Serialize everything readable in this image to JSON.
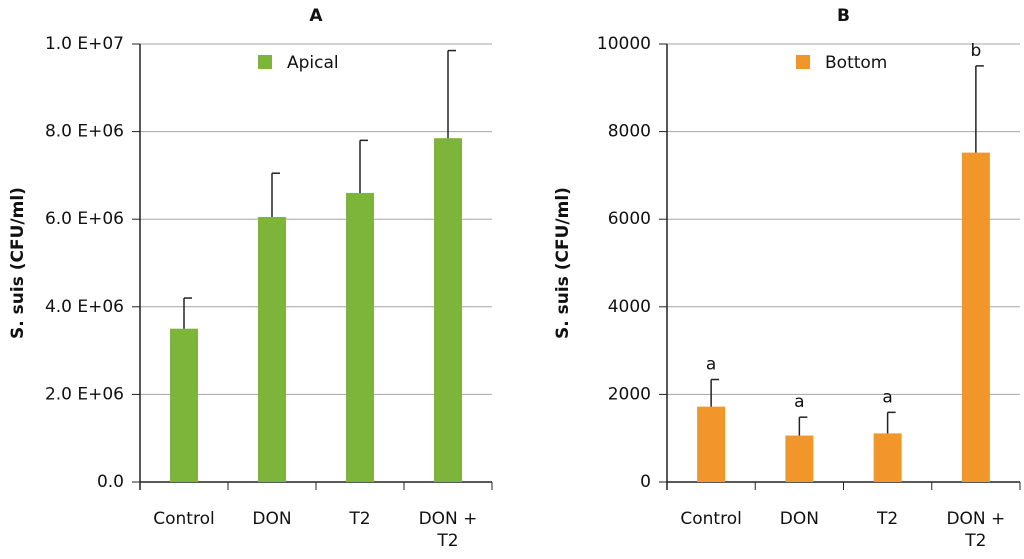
{
  "chart_data": [
    {
      "type": "bar",
      "title": "A",
      "y_label": "S. suis (CFU/ml)",
      "categories": [
        "Control",
        "DON",
        "T2",
        "DON + T2"
      ],
      "series": [
        {
          "name": "Apical",
          "color": "#7db53a",
          "values": [
            3500000,
            6050000,
            6600000,
            7850000
          ],
          "errors": [
            700000,
            1000000,
            1200000,
            2000000
          ]
        }
      ],
      "ylim": [
        0,
        10000000
      ],
      "yticks": [
        {
          "value": 0,
          "label": "0.0"
        },
        {
          "value": 2000000,
          "label": "2.0 E+06"
        },
        {
          "value": 4000000,
          "label": "4.0 E+06"
        },
        {
          "value": 6000000,
          "label": "6.0 E+06"
        },
        {
          "value": 8000000,
          "label": "8.0 E+06"
        },
        {
          "value": 10000000,
          "label": "1.0 E+07"
        }
      ],
      "grid": true
    },
    {
      "type": "bar",
      "title": "B",
      "y_label": "S. suis (CFU/ml)",
      "categories": [
        "Control",
        "DON",
        "T2",
        "DON + T2"
      ],
      "series": [
        {
          "name": "Bottom",
          "color": "#f0962a",
          "values": [
            1720,
            1060,
            1110,
            7520
          ],
          "errors": [
            620,
            420,
            480,
            1980
          ],
          "annotations": [
            "a",
            "a",
            "a",
            "b"
          ]
        }
      ],
      "ylim": [
        0,
        10000
      ],
      "yticks": [
        0,
        2000,
        4000,
        6000,
        8000,
        10000
      ],
      "grid": true
    }
  ]
}
